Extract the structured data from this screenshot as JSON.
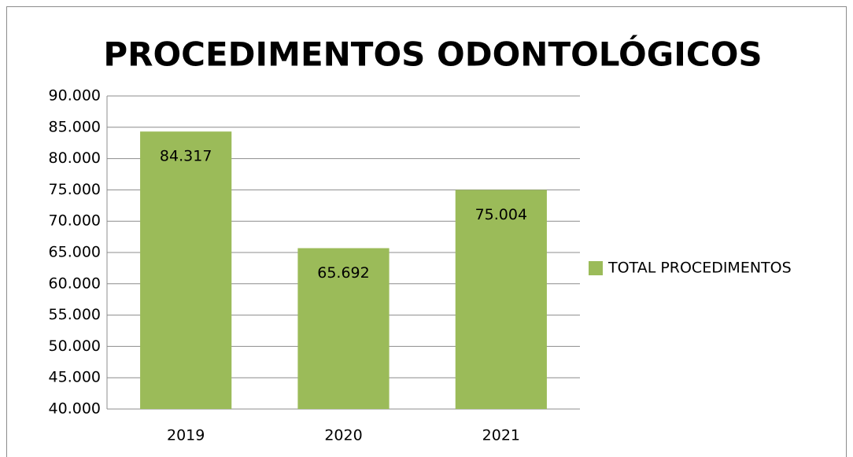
{
  "chart_data": {
    "type": "bar",
    "title": "PROCEDIMENTOS ODONTOLÓGICOS",
    "categories": [
      "2019",
      "2020",
      "2021"
    ],
    "series": [
      {
        "name": "TOTAL PROCEDIMENTOS",
        "color": "#9bbb59",
        "values": [
          84317,
          65692,
          75004
        ],
        "value_labels": [
          "84.317",
          "65.692",
          "75.004"
        ]
      }
    ],
    "ylim": [
      40000,
      90000
    ],
    "yticks": [
      {
        "value": 40000,
        "label": "40.000"
      },
      {
        "value": 45000,
        "label": "45.000"
      },
      {
        "value": 50000,
        "label": "50.000"
      },
      {
        "value": 55000,
        "label": "55.000"
      },
      {
        "value": 60000,
        "label": "60.000"
      },
      {
        "value": 65000,
        "label": "65.000"
      },
      {
        "value": 70000,
        "label": "70.000"
      },
      {
        "value": 75000,
        "label": "75.000"
      },
      {
        "value": 80000,
        "label": "80.000"
      },
      {
        "value": 85000,
        "label": "85.000"
      },
      {
        "value": 90000,
        "label": "90.000"
      }
    ],
    "grid": true,
    "legend": "right"
  }
}
